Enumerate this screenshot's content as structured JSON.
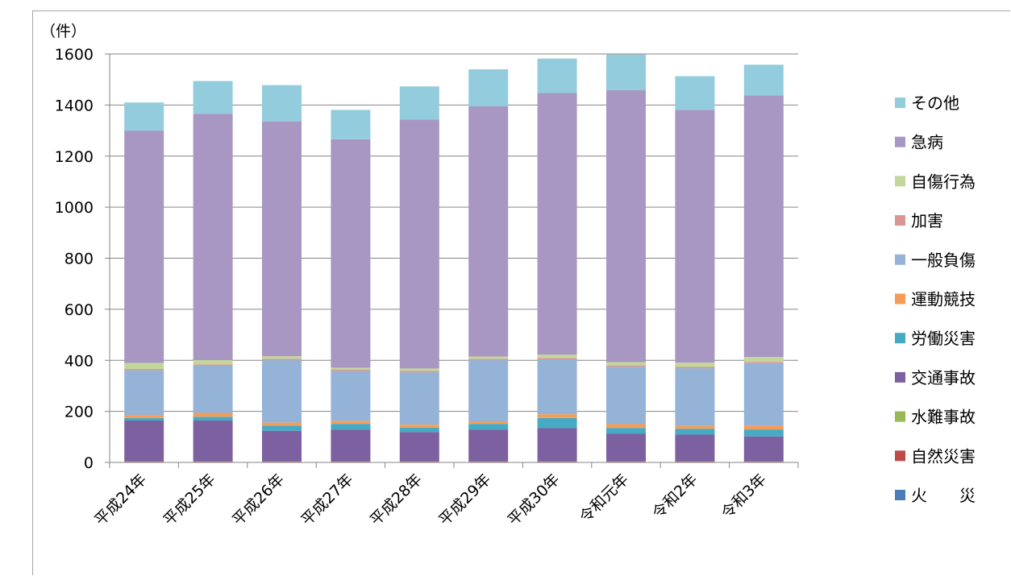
{
  "chart_data": {
    "type": "bar",
    "stacked": true,
    "unit_label": "（件）",
    "ylim": [
      0,
      1600
    ],
    "yticks": [
      0,
      200,
      400,
      600,
      800,
      1000,
      1200,
      1400,
      1600
    ],
    "grid": true,
    "legend_position": "right",
    "categories": [
      "平成24年",
      "平成25年",
      "平成26年",
      "平成27年",
      "平成28年",
      "平成29年",
      "平成30年",
      "令和元年",
      "令和2年",
      "令和3年"
    ],
    "series": [
      {
        "name": "火　　災",
        "color": "#4a7ebb",
        "values": [
          2,
          2,
          2,
          2,
          2,
          2,
          2,
          2,
          2,
          2
        ]
      },
      {
        "name": "自然災害",
        "color": "#be4b48",
        "values": [
          1,
          1,
          1,
          1,
          1,
          1,
          1,
          1,
          1,
          1
        ]
      },
      {
        "name": "水難事故",
        "color": "#98b954",
        "values": [
          1,
          1,
          1,
          1,
          1,
          1,
          1,
          1,
          1,
          1
        ]
      },
      {
        "name": "交通事故",
        "color": "#7d60a0",
        "values": [
          160,
          160,
          120,
          125,
          115,
          125,
          130,
          108,
          105,
          98
        ]
      },
      {
        "name": "労働災害",
        "color": "#46aac5",
        "values": [
          10,
          15,
          20,
          22,
          17,
          22,
          40,
          23,
          23,
          27
        ]
      },
      {
        "name": "運動競技",
        "color": "#f59d56",
        "values": [
          12,
          15,
          12,
          12,
          12,
          10,
          15,
          15,
          12,
          15
        ]
      },
      {
        "name": "一般負傷",
        "color": "#95b3d7",
        "values": [
          175,
          185,
          245,
          195,
          205,
          240,
          215,
          225,
          225,
          245
        ]
      },
      {
        "name": "加害",
        "color": "#d99694",
        "values": [
          5,
          5,
          5,
          5,
          5,
          5,
          5,
          5,
          5,
          5
        ]
      },
      {
        "name": "自傷行為",
        "color": "#c3d69b",
        "values": [
          24,
          17,
          10,
          8,
          10,
          9,
          13,
          13,
          17,
          19
        ]
      },
      {
        "name": "急病",
        "color": "#a897c2",
        "values": [
          910,
          965,
          920,
          895,
          975,
          980,
          1025,
          1065,
          990,
          1025
        ]
      },
      {
        "name": "その他",
        "color": "#93cddd",
        "values": [
          110,
          128,
          142,
          115,
          130,
          145,
          135,
          140,
          132,
          120
        ]
      }
    ]
  }
}
